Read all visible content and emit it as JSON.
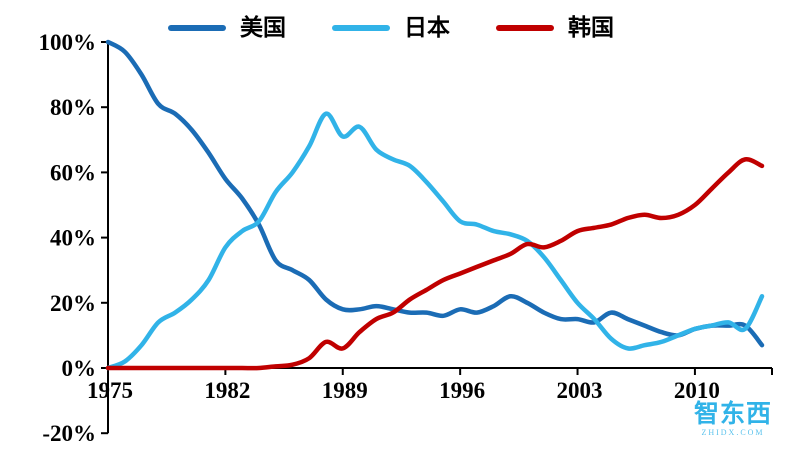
{
  "chart_data": {
    "type": "line",
    "title": "",
    "xlabel": "",
    "ylabel": "",
    "x": [
      1975,
      1976,
      1977,
      1978,
      1979,
      1980,
      1981,
      1982,
      1983,
      1984,
      1985,
      1986,
      1987,
      1988,
      1989,
      1990,
      1991,
      1992,
      1993,
      1994,
      1995,
      1996,
      1997,
      1998,
      1999,
      2000,
      2001,
      2002,
      2003,
      2004,
      2005,
      2006,
      2007,
      2008,
      2009,
      2010,
      2011,
      2012,
      2013,
      2014
    ],
    "series": [
      {
        "name": "美国",
        "color": "#1B6CB5",
        "values": [
          100,
          97,
          90,
          81,
          78,
          73,
          66,
          58,
          52,
          44,
          33,
          30,
          27,
          21,
          18,
          18,
          19,
          18,
          17,
          17,
          16,
          18,
          17,
          19,
          22,
          20,
          17,
          15,
          15,
          14,
          17,
          15,
          13,
          11,
          10,
          12,
          13,
          13,
          13,
          7
        ]
      },
      {
        "name": "日本",
        "color": "#31B3E8",
        "values": [
          0,
          2,
          7,
          14,
          17,
          21,
          27,
          37,
          42,
          45,
          54,
          60,
          68,
          78,
          71,
          74,
          67,
          64,
          62,
          57,
          51,
          45,
          44,
          42,
          41,
          39,
          34,
          27,
          20,
          15,
          9,
          6,
          7,
          8,
          10,
          12,
          13,
          14,
          12,
          22
        ]
      },
      {
        "name": "韩国",
        "color": "#C00000",
        "values": [
          0,
          0,
          0,
          0,
          0,
          0,
          0,
          0,
          0,
          0,
          0.5,
          1,
          3,
          8,
          6,
          11,
          15,
          17,
          21,
          24,
          27,
          29,
          31,
          33,
          35,
          38,
          37,
          39,
          42,
          43,
          44,
          46,
          47,
          46,
          47,
          50,
          55,
          60,
          64,
          62
        ]
      }
    ],
    "x_ticks": [
      "1975",
      "1982",
      "1989",
      "1996",
      "2003",
      "2010"
    ],
    "y_ticks": [
      {
        "label": "100%",
        "value": 100
      },
      {
        "label": "80%",
        "value": 80
      },
      {
        "label": "60%",
        "value": 60
      },
      {
        "label": "40%",
        "value": 40
      },
      {
        "label": "20%",
        "value": 20
      },
      {
        "label": "0%",
        "value": 0
      },
      {
        "label": "-20%",
        "value": -20
      }
    ],
    "xlim": [
      1975,
      2014
    ],
    "ylim": [
      -20,
      100
    ],
    "grid": false,
    "legend_position": "top"
  },
  "watermark": {
    "text": "智东西",
    "subtext": "ZHIDX.COM",
    "color": "#31B3E8"
  }
}
